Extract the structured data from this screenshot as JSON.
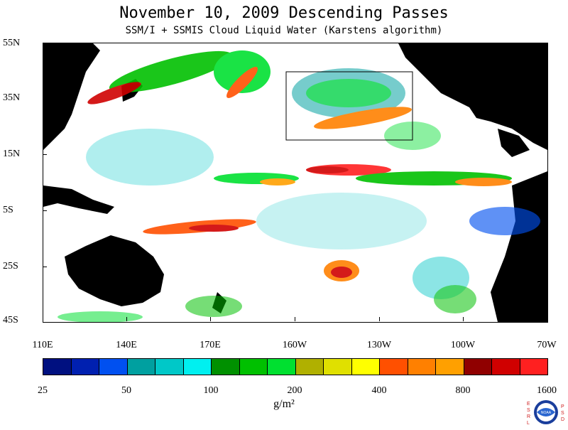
{
  "title": "November 10, 2009  Descending Passes",
  "subtitle": "SSM/I + SSMIS Cloud Liquid Water (Karstens algorithm)",
  "lat_labels": [
    "55N",
    "35N",
    "15N",
    "5S",
    "25S",
    "45S"
  ],
  "lon_labels": [
    "110E",
    "140E",
    "170E",
    "160W",
    "130W",
    "100W",
    "70W"
  ],
  "colorbar": {
    "colors": [
      "#001080",
      "#0020b0",
      "#0050f0",
      "#00a0a0",
      "#00c8c8",
      "#00f0f0",
      "#009000",
      "#00c000",
      "#00e030",
      "#b0b000",
      "#e0e000",
      "#ffff00",
      "#ff5000",
      "#ff8000",
      "#ffa000",
      "#900000",
      "#d00000",
      "#ff2020"
    ],
    "tick_labels": [
      "25",
      "50",
      "100",
      "200",
      "400",
      "800",
      "1600"
    ]
  },
  "unit_label": "g/m²",
  "logo": {
    "left_letters": "ESRL",
    "right_letters": "PSD",
    "seal_text": "NOAA"
  }
}
